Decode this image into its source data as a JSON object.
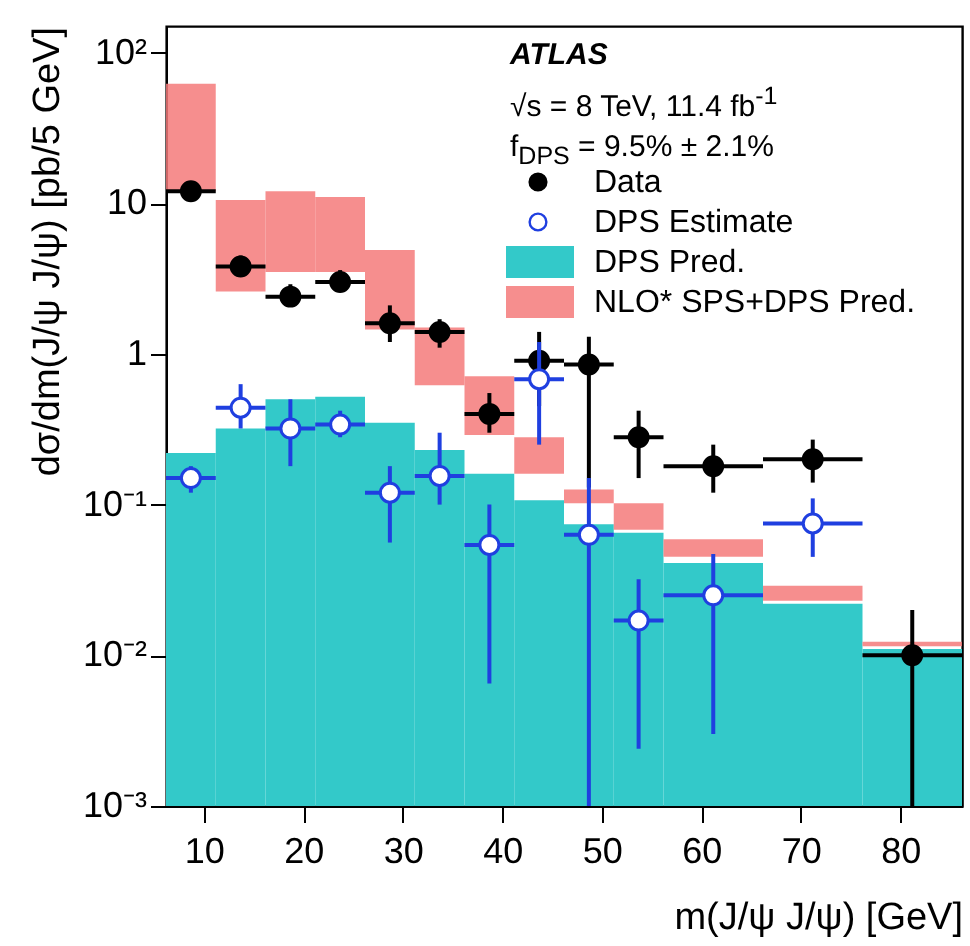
{
  "chart_data": {
    "type": "histogram",
    "xlabel": "m(J/ψ J/ψ) [GeV]",
    "ylabel": "dσ/dm(J/ψ J/ψ) [pb/5 GeV]",
    "annotations": [
      "ATLAS",
      "√s = 8 TeV, 11.4 fb$^{-1}$",
      "f$_{DPS}$ = 9.5% ± 2.1%"
    ],
    "bins": [
      6.2,
      11.2,
      16.2,
      21.2,
      26.2,
      31.2,
      36.2,
      41.2,
      46.2,
      51.2,
      56.2,
      66.2,
      76.2,
      86.2
    ],
    "series": [
      {
        "name": "Data",
        "type": "scatter",
        "color": "#000000",
        "marker": "circle",
        "x": [
          8.7,
          13.7,
          18.7,
          23.7,
          28.7,
          33.7,
          38.7,
          43.7,
          48.7,
          53.7,
          61.2,
          71.2,
          81.2
        ],
        "values": [
          12,
          3.8,
          2.4,
          3.0,
          1.6,
          1.4,
          0.4,
          0.9,
          0.85,
          0.28,
          0.18,
          0.2,
          0.01
        ],
        "errors": [
          [
            10.5,
            14
          ],
          [
            3.3,
            4.5
          ],
          [
            2.1,
            2.9
          ],
          [
            2.7,
            3.6
          ],
          [
            1.2,
            2.1
          ],
          [
            1.1,
            1.7
          ],
          [
            0.3,
            0.55
          ],
          [
            0.45,
            1.4
          ],
          [
            0.13,
            1.3
          ],
          [
            0.15,
            0.42
          ],
          [
            0.12,
            0.25
          ],
          [
            0.14,
            0.27
          ],
          [
            0.001,
            0.02
          ]
        ],
        "xerrors": [
          2.5,
          2.5,
          2.5,
          2.5,
          2.5,
          2.5,
          2.5,
          2.5,
          2.5,
          2.5,
          5,
          5,
          5
        ]
      },
      {
        "name": "DPS Estimate",
        "type": "scatter",
        "color": "#1f3fe0",
        "marker": "circle",
        "x": [
          8.7,
          13.7,
          18.7,
          23.7,
          28.7,
          33.7,
          38.7,
          43.7,
          48.7,
          53.7,
          61.2,
          71.2
        ],
        "values": [
          0.15,
          0.44,
          0.32,
          0.34,
          0.12,
          0.155,
          0.054,
          0.68,
          0.063,
          0.017,
          0.025,
          0.075
        ],
        "errors": [
          [
            0.12,
            0.18
          ],
          [
            0.32,
            0.63
          ],
          [
            0.18,
            0.5
          ],
          [
            0.28,
            0.42
          ],
          [
            0.056,
            0.18
          ],
          [
            0.1,
            0.3
          ],
          [
            0.0065,
            0.1
          ],
          [
            0.25,
            1.2
          ],
          [
            0.001,
            0.15
          ],
          [
            0.0024,
            0.032
          ],
          [
            0.003,
            0.047
          ],
          [
            0.045,
            0.11
          ]
        ],
        "xerrors": [
          2.5,
          2.5,
          2.5,
          2.5,
          2.5,
          2.5,
          2.5,
          2.5,
          2.5,
          2.5,
          5,
          5
        ]
      },
      {
        "name": "DPS Pred.",
        "color": "#33c9c9",
        "values": [
          0.22,
          0.32,
          0.5,
          0.52,
          0.35,
          0.23,
          0.16,
          0.107,
          0.074,
          0.065,
          0.041,
          0.022,
          0.011
        ]
      },
      {
        "name": "NLO* SPS+DPS Pred.",
        "color": "#f47a7a",
        "base": [
          12,
          2.6,
          3.5,
          3.5,
          1.45,
          0.62,
          0.29,
          0.16,
          0.102,
          0.068,
          0.045,
          0.023,
          0.0115
        ],
        "values": [
          50,
          7.9,
          8.5,
          7.5,
          3.45,
          0.88,
          0.42,
          0.12,
          0.024,
          0.034,
          0.014,
          0.006,
          0.0008
        ]
      }
    ],
    "xlim": [
      6.2,
      86.2
    ],
    "xticks": [
      10,
      20,
      30,
      40,
      50,
      60,
      70,
      80
    ],
    "log": "y",
    "ylim": [
      0.001,
      150
    ],
    "yticks": [
      {
        "value": 0.001,
        "label": "10⁻³"
      },
      {
        "value": 0.01,
        "label": "10⁻²"
      },
      {
        "value": 0.1,
        "label": "10⁻¹"
      },
      1,
      10,
      {
        "value": 100,
        "label": "10²"
      }
    ],
    "grid": false,
    "legend": "top right"
  }
}
